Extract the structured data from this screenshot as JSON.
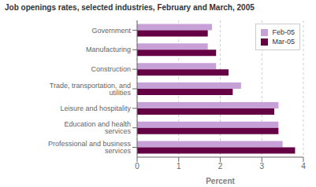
{
  "chart_data": {
    "type": "bar",
    "orientation": "horizontal",
    "title": "Job openings rates, selected industries, February and March, 2005",
    "categories": [
      "Professional and business services",
      "Education and health services",
      "Leisure and hospitality",
      "Trade, transportation, and utilities",
      "Construction",
      "Manufacturing",
      "Government"
    ],
    "series": [
      {
        "name": "Feb-05",
        "color": "#c8a0d8",
        "values": [
          3.5,
          3.4,
          3.4,
          2.5,
          1.9,
          1.7,
          1.8
        ]
      },
      {
        "name": "Mar-05",
        "color": "#660044",
        "values": [
          3.8,
          3.4,
          3.3,
          2.3,
          2.2,
          1.9,
          1.7
        ]
      }
    ],
    "xlabel": "Percent",
    "xlim": [
      0,
      4
    ],
    "xticks": [
      0,
      1,
      2,
      3,
      4
    ],
    "grid": true,
    "legend": "upper right"
  }
}
